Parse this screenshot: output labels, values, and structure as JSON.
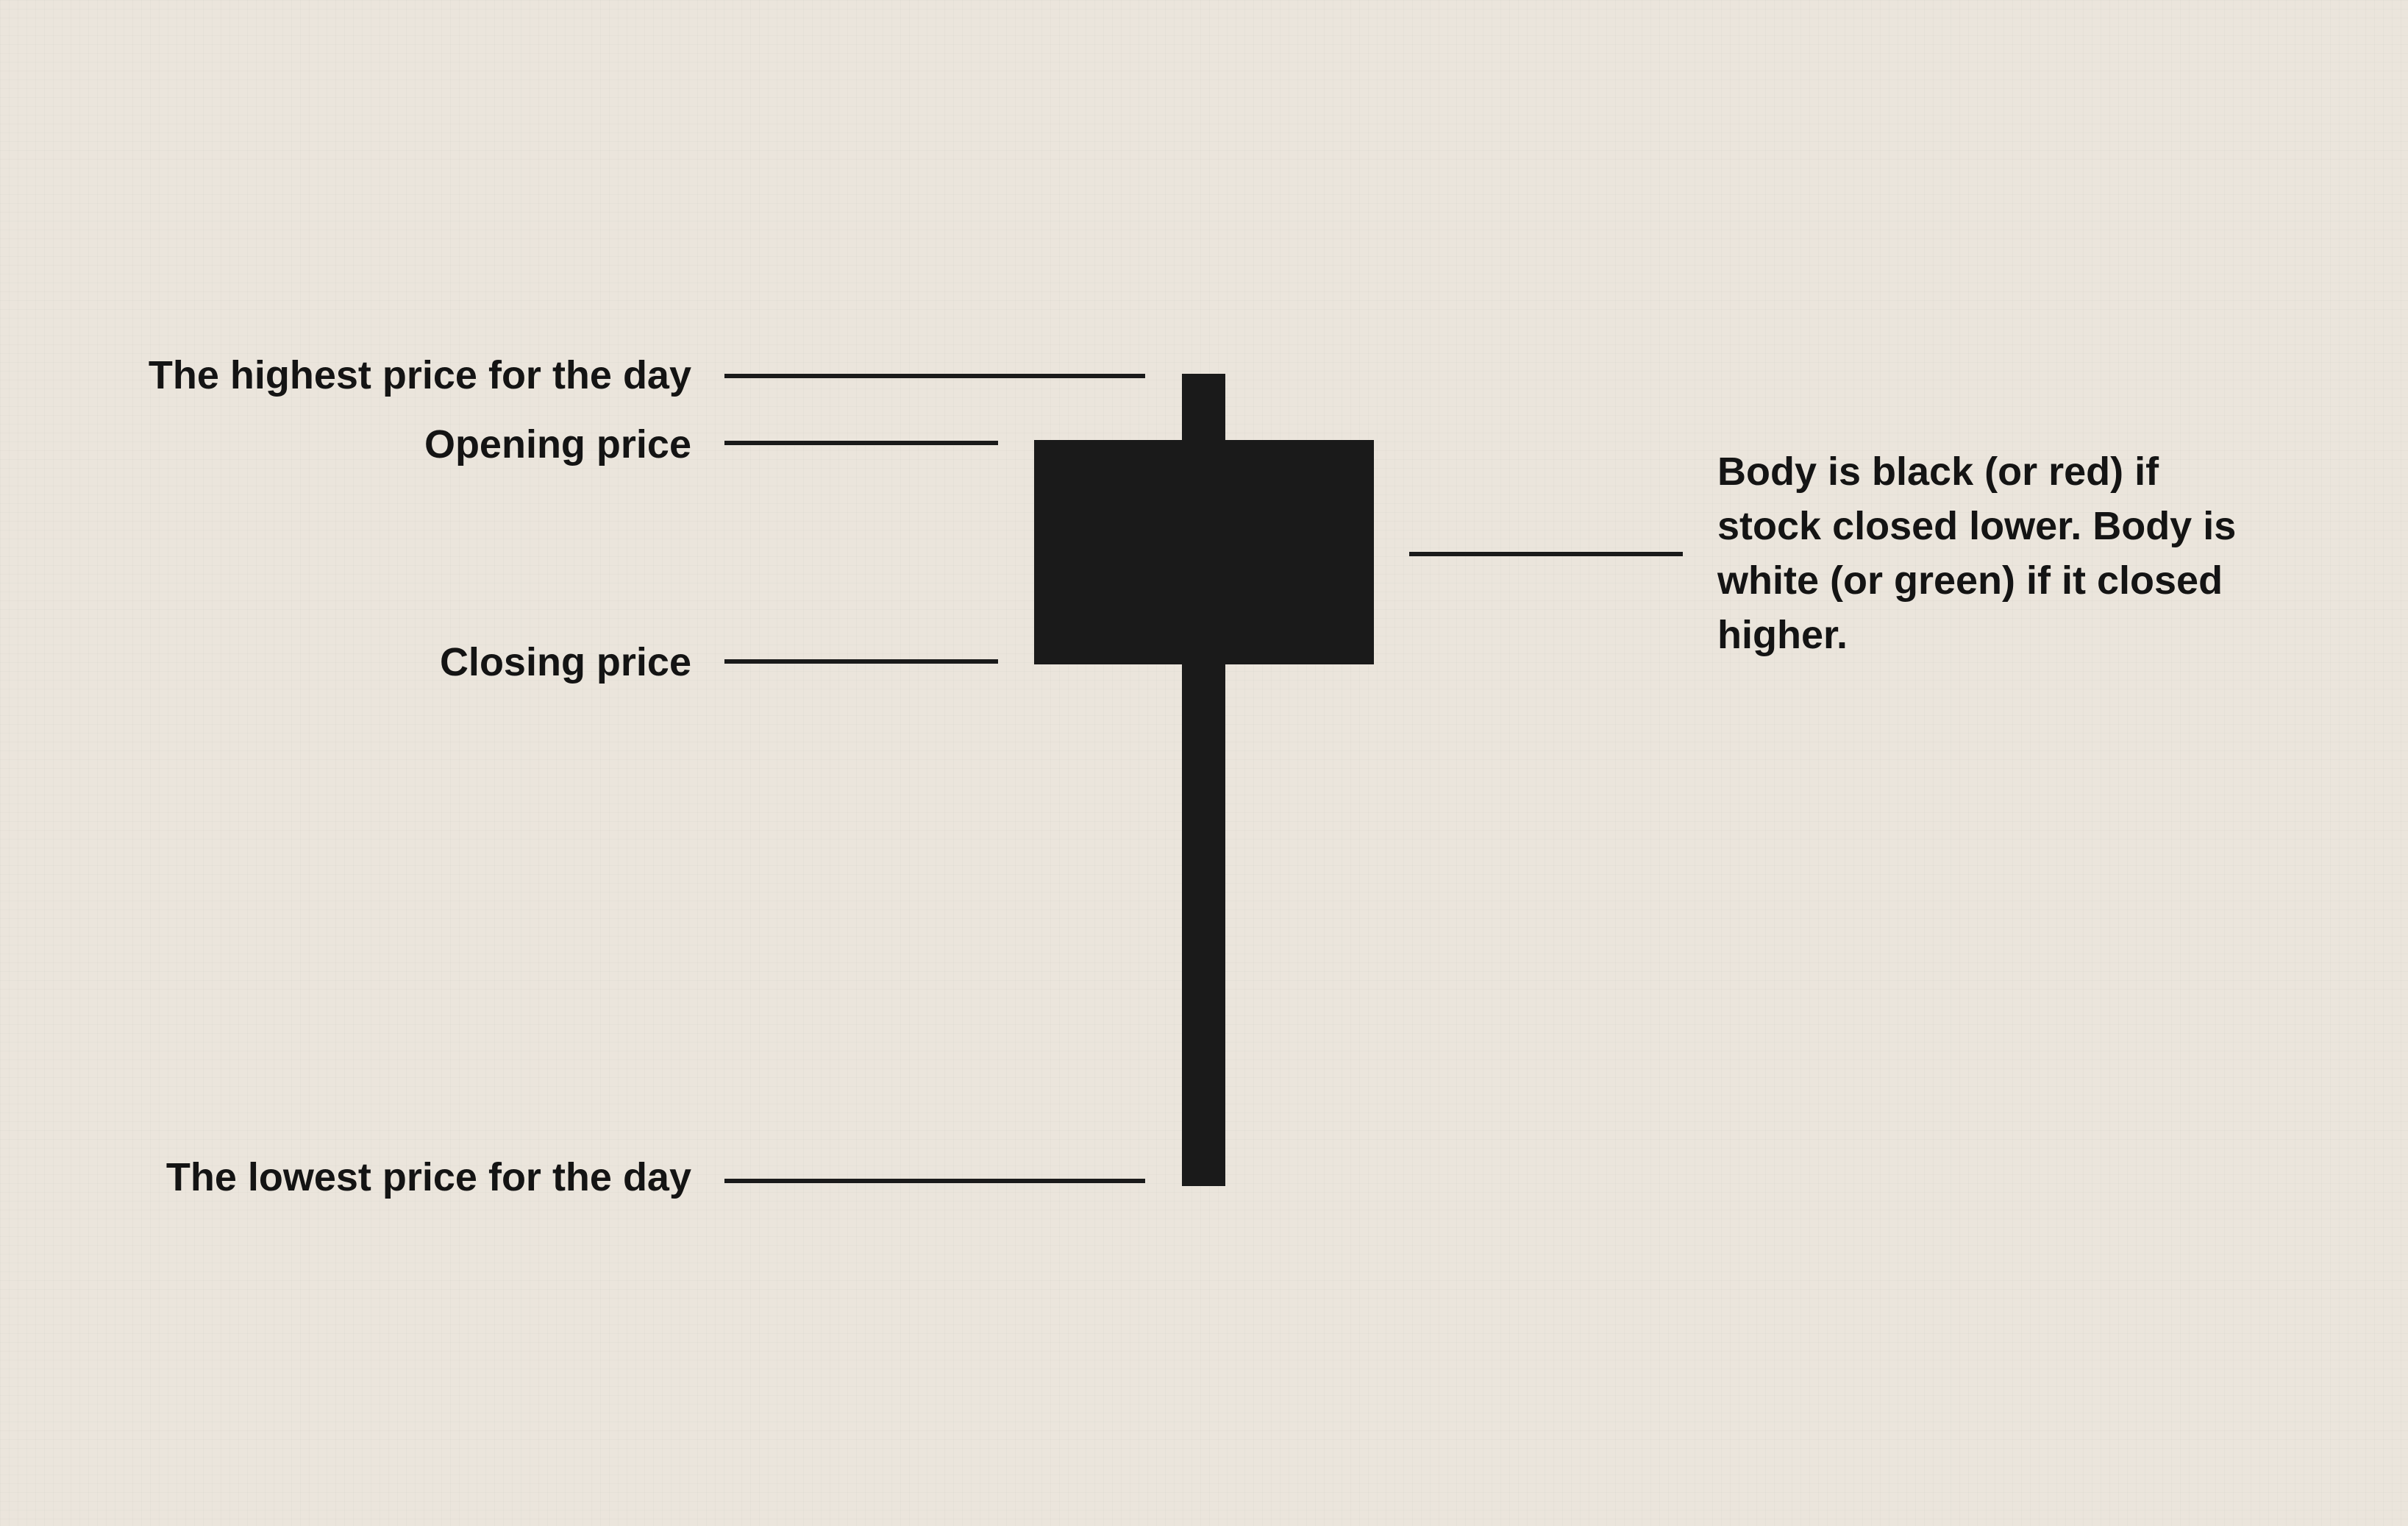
{
  "labels": {
    "high": "The highest price for the day",
    "open": "Opening price",
    "close": "Closing price",
    "low": "The lowest price for the day"
  },
  "note": {
    "body_color": "Body is black (or red) if stock closed lower. Body is white (or green) if it closed higher."
  },
  "colors": {
    "background": "#ebe5dc",
    "candle": "#1a1a1a",
    "text": "#141414"
  }
}
